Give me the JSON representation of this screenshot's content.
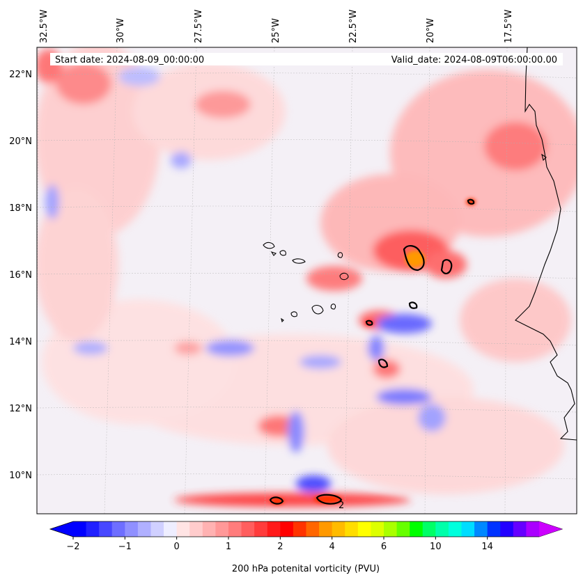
{
  "map": {
    "start_label": "Start date: 2024-08-09_00:00:00",
    "valid_label": "Valid_date: 2024-08-09T06:00:00.00",
    "lon_labels": [
      "32.5°W",
      "30°W",
      "27.5°W",
      "25°W",
      "22.5°W",
      "20°W",
      "17.5°W"
    ],
    "lat_labels": [
      "22°N",
      "20°N",
      "18°N",
      "16°N",
      "14°N",
      "12°N",
      "10°N"
    ],
    "contour_label": "2"
  },
  "colorbar": {
    "title": "200 hPa potenital vorticity (PVU)",
    "tick_labels": [
      "−2",
      "−1",
      "0",
      "1",
      "2",
      "4",
      "6",
      "10",
      "14"
    ],
    "colors": [
      "#0000ff",
      "#2020ff",
      "#4848ff",
      "#6e6eff",
      "#9090ff",
      "#b0b0ff",
      "#d0d0ff",
      "#eeeeff",
      "#ffe4e4",
      "#ffcccc",
      "#ffb2b2",
      "#ff9898",
      "#ff7c7c",
      "#ff5e5e",
      "#ff3c3c",
      "#ff1a1a",
      "#ff0000",
      "#ff3300",
      "#ff6600",
      "#ff9900",
      "#ffbb00",
      "#ffdd00",
      "#ffff00",
      "#ddff00",
      "#aaff00",
      "#66ff00",
      "#00ff00",
      "#00ff66",
      "#00ffaa",
      "#00ffdd",
      "#00ddff",
      "#0088ff",
      "#0033ff",
      "#2200ff",
      "#6600ff",
      "#aa00ff"
    ],
    "under_color": "#0000ff",
    "over_color": "#cc00ff"
  }
}
